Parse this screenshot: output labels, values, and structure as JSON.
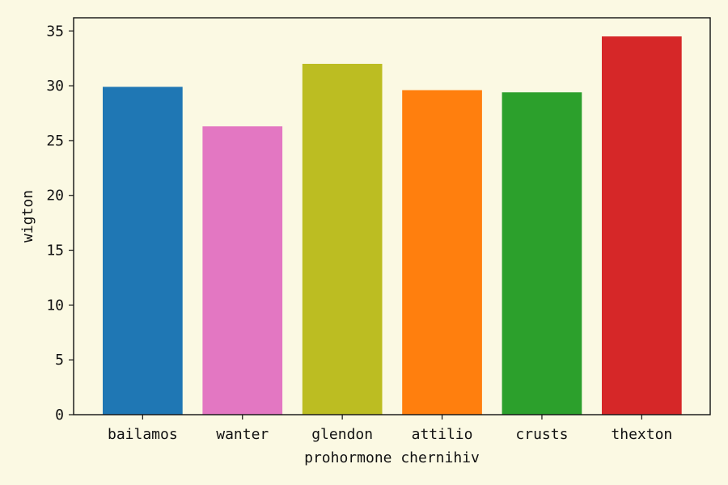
{
  "chart_data": {
    "type": "bar",
    "xlabel": "prohormone chernihiv",
    "ylabel": "wigton",
    "categories": [
      "bailamos",
      "wanter",
      "glendon",
      "attilio",
      "crusts",
      "thexton"
    ],
    "values": [
      29.9,
      26.3,
      32.0,
      29.6,
      29.4,
      34.5
    ],
    "colors": [
      "#1f77b4",
      "#e377c2",
      "#bcbd22",
      "#ff7f0e",
      "#2ca02c",
      "#d62728"
    ],
    "ylim": [
      0,
      36.2
    ],
    "yticks": [
      0,
      5,
      10,
      15,
      20,
      25,
      30,
      35
    ],
    "grid": false,
    "background": "#fbf9e3"
  }
}
